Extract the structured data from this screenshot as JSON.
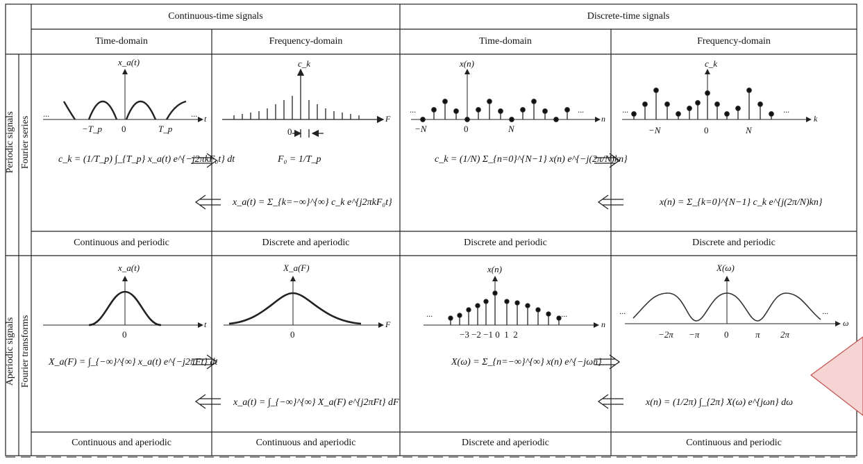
{
  "header": {
    "continuous": "Continuous-time signals",
    "discrete": "Discrete-time signals"
  },
  "columns": [
    "Time-domain",
    "Frequency-domain",
    "Time-domain",
    "Frequency-domain"
  ],
  "rows": {
    "periodic": {
      "outer": "Periodic signals",
      "inner": "Fourier series"
    },
    "aperiodic": {
      "outer": "Aperiodic signals",
      "inner": "Fourier transforms"
    }
  },
  "periodic": {
    "captions": [
      "Continuous and periodic",
      "Discrete and aperiodic",
      "Discrete and periodic",
      "Discrete and periodic"
    ],
    "labels": {
      "xa_t": "x_a(t)",
      "ck": "c_k",
      "xn": "x(n)",
      "ck2": "c_k",
      "t": "t",
      "F": "F",
      "n": "n",
      "k": "k",
      "minus_Tp": "−T_p",
      "zero": "0",
      "Tp": "T_p",
      "minus_N": "−N",
      "N": "N",
      "dots": "···"
    },
    "equations": {
      "analysis_ct": "c_k = (1/T_p) ∫_{T_p} x_a(t) e^{−j2πkF₀t} dt",
      "F0": "F₀ = 1/T_p",
      "synthesis_ct": "x_a(t) = Σ_{k=−∞}^{∞} c_k e^{j2πkF₀t}",
      "analysis_dt": "c_k = (1/N) Σ_{n=0}^{N−1} x(n) e^{−j(2π/N)kn}",
      "synthesis_dt": "x(n) = Σ_{k=0}^{N−1} c_k e^{j(2π/N)kn}"
    }
  },
  "aperiodic": {
    "captions": [
      "Continuous and aperiodic",
      "Continuous and aperiodic",
      "Discrete and aperiodic",
      "Continuous and periodic"
    ],
    "labels": {
      "xa_t": "x_a(t)",
      "Xa_F": "X_a(F)",
      "xn": "x(n)",
      "Xw": "X(ω)",
      "t": "t",
      "F": "F",
      "n": "n",
      "w": "ω",
      "zero": "0",
      "n_ticks": "−3 −2 −1 0  1  2",
      "w_ticks": [
        "−2π",
        "−π",
        "0",
        "π",
        "2π"
      ],
      "dots": "···"
    },
    "equations": {
      "analysis_ct": "X_a(F) = ∫_{−∞}^{∞} x_a(t) e^{−j2πFt} dt",
      "synthesis_ct": "x_a(t) = ∫_{−∞}^{∞} X_a(F) e^{j2πFt} dF",
      "analysis_dt": "X(ω) = Σ_{n=−∞}^{∞} x(n) e^{−jωn}",
      "synthesis_dt": "x(n) = (1/2π) ∫_{2π} X(ω) e^{jωn} dω"
    }
  },
  "colors": {
    "line": "#222222",
    "marker_fill": "#f7d4d4",
    "marker_stroke": "#c0504d"
  }
}
